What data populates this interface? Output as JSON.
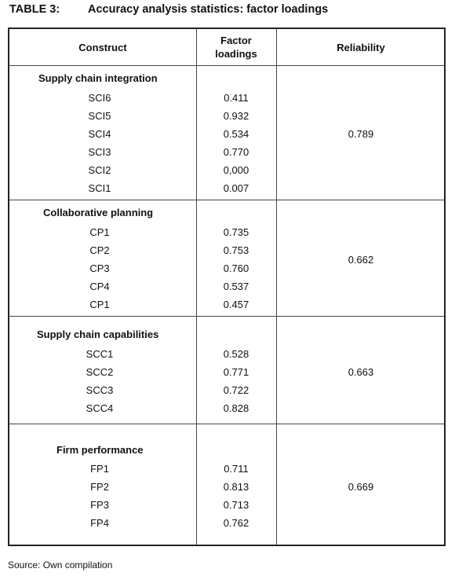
{
  "caption": {
    "label": "TABLE 3:",
    "title": "Accuracy analysis statistics: factor loadings"
  },
  "headers": {
    "construct": "Construct",
    "factor_line1": "Factor",
    "factor_line2": "loadings",
    "reliability": "Reliability"
  },
  "groups": [
    {
      "title": "Supply chain integration",
      "reliability": "0.789",
      "items": [
        {
          "name": "SCI6",
          "loading": "0.411"
        },
        {
          "name": "SCI5",
          "loading": "0.932"
        },
        {
          "name": "SCI4",
          "loading": "0.534"
        },
        {
          "name": "SCI3",
          "loading": "0.770"
        },
        {
          "name": "SCI2",
          "loading": "0,000"
        },
        {
          "name": "SCI1",
          "loading": "0.007"
        }
      ]
    },
    {
      "title": "Collaborative planning",
      "reliability": "0.662",
      "items": [
        {
          "name": "CP1",
          "loading": "0.735"
        },
        {
          "name": "CP2",
          "loading": "0.753"
        },
        {
          "name": "CP3",
          "loading": "0.760"
        },
        {
          "name": "CP4",
          "loading": "0.537"
        },
        {
          "name": "CP1",
          "loading": "0.457"
        }
      ]
    },
    {
      "title": "Supply chain capabilities",
      "reliability": "0.663",
      "items": [
        {
          "name": "SCC1",
          "loading": "0.528"
        },
        {
          "name": "SCC2",
          "loading": "0.771"
        },
        {
          "name": "SCC3",
          "loading": "0.722"
        },
        {
          "name": "SCC4",
          "loading": "0.828"
        }
      ]
    },
    {
      "title": "Firm performance",
      "reliability": "0.669",
      "items": [
        {
          "name": "FP1",
          "loading": "0.711"
        },
        {
          "name": "FP2",
          "loading": "0.813"
        },
        {
          "name": "FP3",
          "loading": "0.713"
        },
        {
          "name": "FP4",
          "loading": "0.762"
        }
      ]
    }
  ],
  "source": "Source: Own compilation"
}
